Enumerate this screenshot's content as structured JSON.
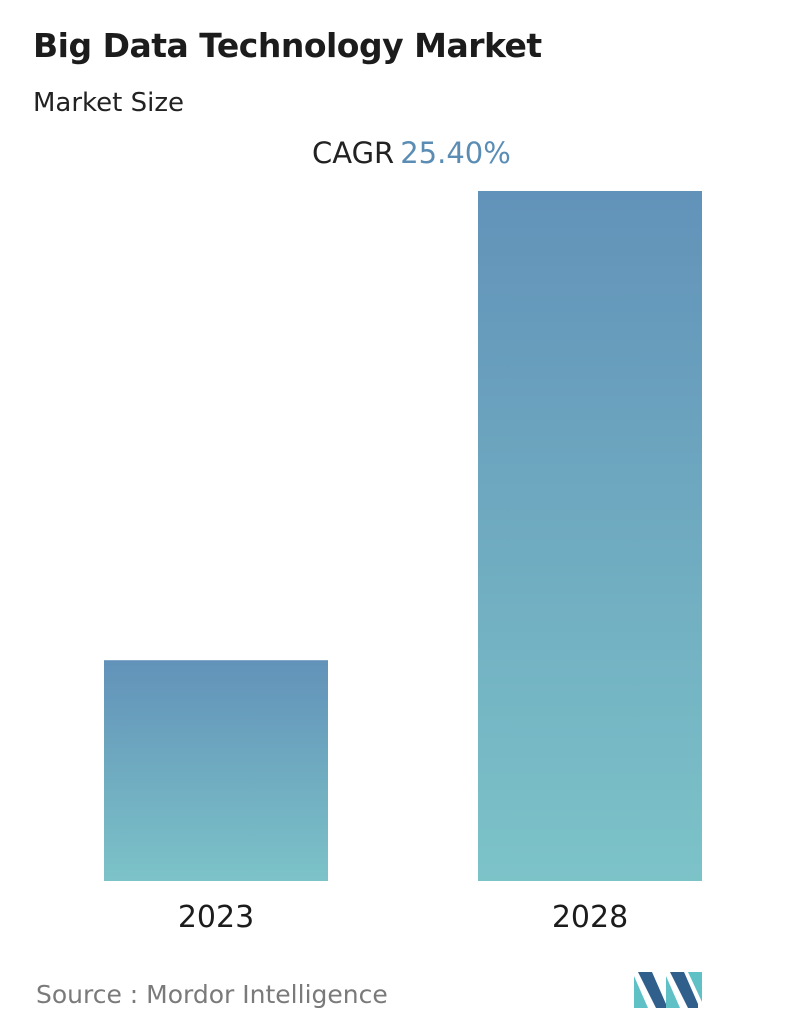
{
  "header": {
    "title": "Big Data Technology Market",
    "subtitle": "Market Size"
  },
  "cagr": {
    "label": "CAGR",
    "value": "25.40%"
  },
  "chart_data": {
    "type": "bar",
    "categories": [
      "2023",
      "2028"
    ],
    "values": [
      32,
      100
    ],
    "title": "Big Data Technology Market",
    "subtitle": "Market Size",
    "xlabel": "",
    "ylabel": "",
    "ylim": [
      0,
      100
    ],
    "grid": false,
    "legend": "none",
    "annotation": "CAGR 25.40%"
  },
  "footer": {
    "source": "Source :  Mordor Intelligence",
    "logo_icon": "mordor-intelligence-logo"
  },
  "colors": {
    "bar_top": "#6292b9",
    "bar_bottom": "#7cc3c8",
    "accent": "#5b8db4",
    "logo_dark": "#2f5f8a",
    "logo_light": "#5fc0c6"
  }
}
